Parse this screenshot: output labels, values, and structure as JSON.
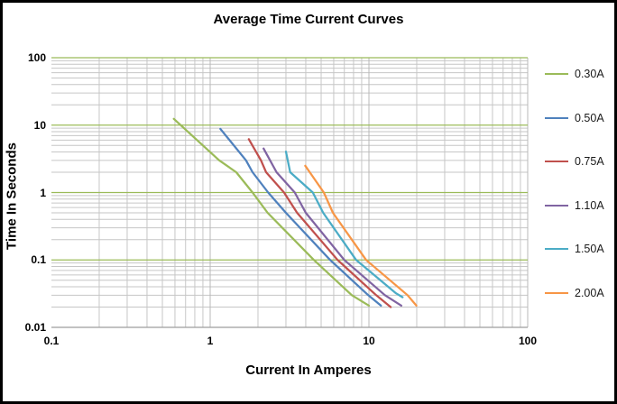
{
  "title": "Average Time Current Curves",
  "chart_data": {
    "type": "line",
    "title": "Average Time Current Curves",
    "xlabel": "Current In Amperes",
    "ylabel": "Time In Seconds",
    "x_scale": "log",
    "y_scale": "log",
    "xlim": [
      0.1,
      100
    ],
    "ylim": [
      0.01,
      100
    ],
    "x_ticks": [
      0.1,
      1,
      10,
      100
    ],
    "y_ticks": [
      100,
      10,
      1,
      0.1,
      0.01
    ],
    "grid": "log major + minor gridlines",
    "legend_position": "right",
    "series": [
      {
        "name": "0.30A",
        "color": "#9BBB59",
        "points": [
          [
            0.59,
            12.4
          ],
          [
            1.14,
            3
          ],
          [
            1.46,
            2
          ],
          [
            1.85,
            1
          ],
          [
            2.3,
            0.5
          ],
          [
            4.5,
            0.1
          ],
          [
            7.8,
            0.03
          ],
          [
            10,
            0.021
          ]
        ]
      },
      {
        "name": "0.50A",
        "color": "#4F81BD",
        "points": [
          [
            1.16,
            8.8
          ],
          [
            1.68,
            3
          ],
          [
            1.85,
            2
          ],
          [
            2.32,
            1
          ],
          [
            3.0,
            0.5
          ],
          [
            5.7,
            0.1
          ],
          [
            9.9,
            0.03
          ],
          [
            11.9,
            0.021
          ]
        ]
      },
      {
        "name": "0.75A",
        "color": "#C0504D",
        "points": [
          [
            1.75,
            6.2
          ],
          [
            2.09,
            3
          ],
          [
            2.25,
            2
          ],
          [
            2.92,
            1
          ],
          [
            3.53,
            0.5
          ],
          [
            6.35,
            0.1
          ],
          [
            11.1,
            0.03
          ],
          [
            13.7,
            0.02
          ]
        ]
      },
      {
        "name": "1.10A",
        "color": "#8064A2",
        "points": [
          [
            2.17,
            4.5
          ],
          [
            2.62,
            2
          ],
          [
            3.41,
            1
          ],
          [
            4.0,
            0.5
          ],
          [
            7.0,
            0.1
          ],
          [
            12.6,
            0.03
          ],
          [
            16.0,
            0.021
          ]
        ]
      },
      {
        "name": "1.50A",
        "color": "#4BACC6",
        "points": [
          [
            3.0,
            4.05
          ],
          [
            3.19,
            2
          ],
          [
            4.43,
            1
          ],
          [
            5.15,
            0.5
          ],
          [
            8.3,
            0.1
          ],
          [
            14.8,
            0.032
          ],
          [
            16.3,
            0.028
          ]
        ]
      },
      {
        "name": "2.00A",
        "color": "#F79646",
        "points": [
          [
            3.97,
            2.5
          ],
          [
            4.24,
            2
          ],
          [
            5.2,
            1
          ],
          [
            5.93,
            0.5
          ],
          [
            9.6,
            0.1
          ],
          [
            17.5,
            0.03
          ],
          [
            19.9,
            0.021
          ]
        ]
      }
    ]
  },
  "colors": {
    "major_hgrid": "#9BBB59",
    "minor_grid": "#C6C6C6",
    "major_vgrid": "#B8B8B8",
    "axis_line": "#9E9E9E",
    "frame": "#000000"
  }
}
